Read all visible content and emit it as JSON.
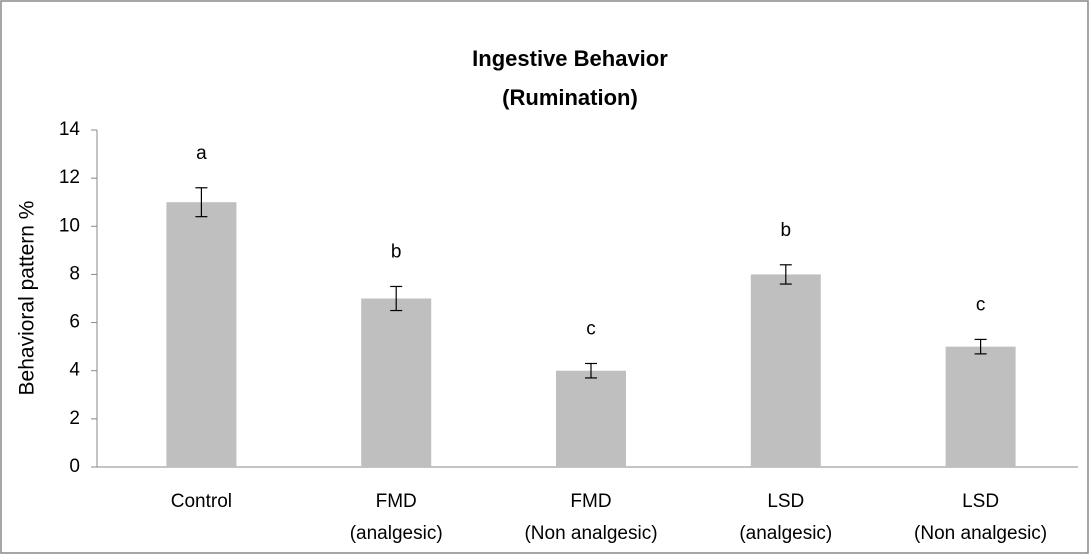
{
  "chart_data": {
    "type": "bar",
    "title": [
      "Ingestive Behavior",
      "(Rumination)"
    ],
    "y_label": "Behavioral pattern %",
    "categories": [
      [
        "Control"
      ],
      [
        "FMD",
        "(analgesic)"
      ],
      [
        "FMD",
        "(Non analgesic)"
      ],
      [
        "LSD",
        "(analgesic)"
      ],
      [
        "LSD",
        "(Non analgesic)"
      ]
    ],
    "values": [
      11,
      7,
      4,
      8,
      5
    ],
    "errors": [
      0.6,
      0.5,
      0.3,
      0.4,
      0.3
    ],
    "annotations": [
      "a",
      "b",
      "c",
      "b",
      "c"
    ],
    "color": "#bfbfbf",
    "ylim": [
      0,
      14
    ],
    "yticks": [
      0,
      2,
      4,
      6,
      8,
      10,
      12,
      14
    ],
    "grid": false
  }
}
